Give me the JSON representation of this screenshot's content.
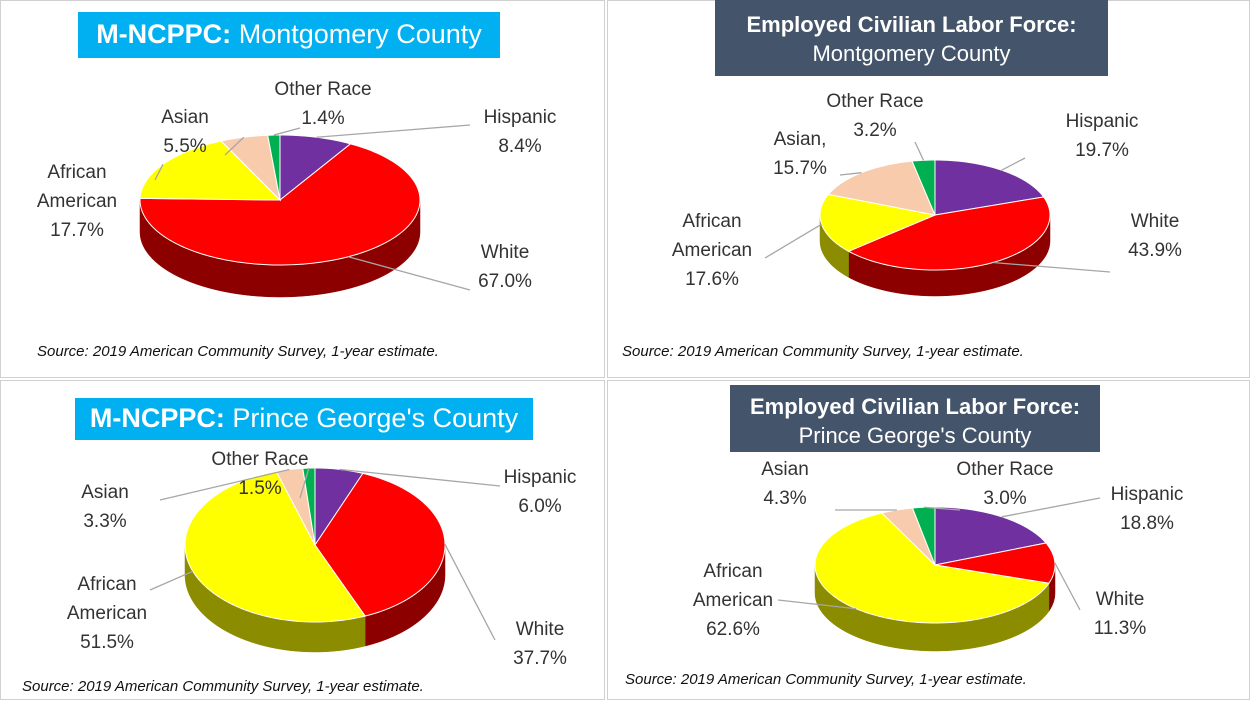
{
  "chart_data": [
    {
      "type": "pie",
      "title": {
        "lead": "M-NCPPC:",
        "text": "Montgomery County"
      },
      "categories": [
        "Hispanic",
        "White",
        "African American",
        "Asian",
        "Other Race"
      ],
      "values": [
        8.4,
        67.0,
        17.7,
        5.5,
        1.4
      ],
      "value_labels": [
        "8.4%",
        "67.0%",
        "17.7%",
        "5.5%",
        "1.4%"
      ],
      "colors": [
        "#7030a0",
        "#ff0000",
        "#ffff00",
        "#f8cbad",
        "#00b050"
      ],
      "source": "Source: 2019 American Community Survey, 1-year estimate."
    },
    {
      "type": "pie",
      "title": {
        "lead": "Employed Civilian Labor Force:",
        "text": "Montgomery County"
      },
      "categories": [
        "Hispanic",
        "White",
        "African American",
        "Asian,",
        "Other Race"
      ],
      "values": [
        19.7,
        43.9,
        17.6,
        15.7,
        3.2
      ],
      "value_labels": [
        "19.7%",
        "43.9%",
        "17.6%",
        "15.7%",
        "3.2%"
      ],
      "colors": [
        "#7030a0",
        "#ff0000",
        "#ffff00",
        "#f8cbad",
        "#00b050"
      ],
      "source": "Source: 2019 American Community Survey, 1-year estimate."
    },
    {
      "type": "pie",
      "title": {
        "lead": "M-NCPPC:",
        "text": "Prince George's County"
      },
      "categories": [
        "Hispanic",
        "White",
        "African American",
        "Asian",
        "Other Race"
      ],
      "values": [
        6.0,
        37.7,
        51.5,
        3.3,
        1.5
      ],
      "value_labels": [
        "6.0%",
        "37.7%",
        "51.5%",
        "3.3%",
        "1.5%"
      ],
      "colors": [
        "#7030a0",
        "#ff0000",
        "#ffff00",
        "#f8cbad",
        "#00b050"
      ],
      "source": "Source: 2019 American Community Survey, 1-year estimate."
    },
    {
      "type": "pie",
      "title": {
        "lead": "Employed Civilian Labor Force:",
        "text": "Prince George's County"
      },
      "categories": [
        "Hispanic",
        "White",
        "African American",
        "Asian",
        "Other Race"
      ],
      "values": [
        18.8,
        11.3,
        62.6,
        4.3,
        3.0
      ],
      "value_labels": [
        "18.8%",
        "11.3%",
        "62.6%",
        "4.3%",
        "3.0%"
      ],
      "colors": [
        "#7030a0",
        "#ff0000",
        "#ffff00",
        "#f8cbad",
        "#00b050"
      ],
      "source": "Source: 2019 American Community Survey, 1-year estimate."
    }
  ]
}
